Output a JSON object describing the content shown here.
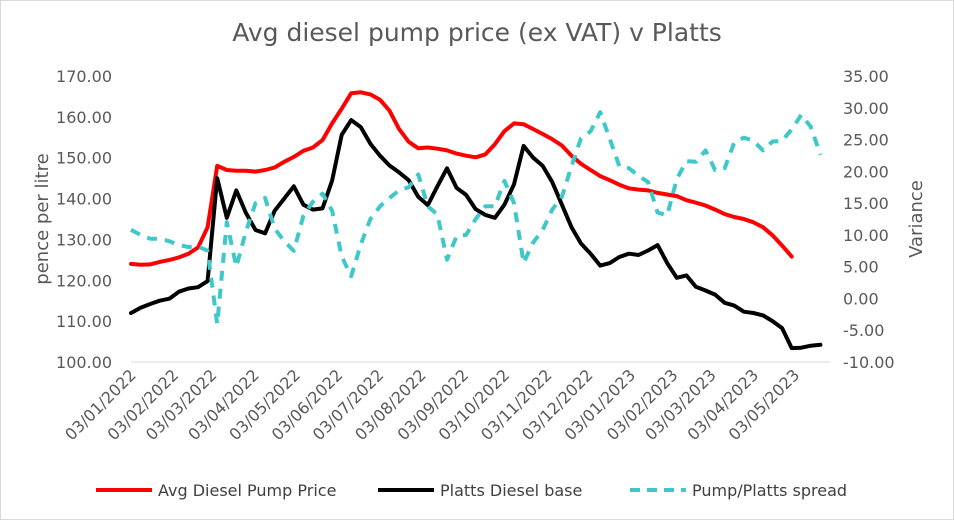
{
  "chart_data": {
    "type": "line",
    "title": "Avg diesel pump price (ex VAT) v Platts",
    "ylabel": "pence per litre",
    "y2label": "Variance",
    "ylim": [
      100,
      170
    ],
    "y2lim": [
      -10,
      35
    ],
    "yticks": [
      "100.00",
      "110.00",
      "120.00",
      "130.00",
      "140.00",
      "150.00",
      "160.00",
      "170.00"
    ],
    "y2ticks": [
      "-10.00",
      "-5.00",
      "0.00",
      "5.00",
      "10.00",
      "15.00",
      "20.00",
      "25.00",
      "30.00",
      "35.00"
    ],
    "xticks": [
      "03/01/2022",
      "03/02/2022",
      "03/03/2022",
      "03/04/2022",
      "03/05/2022",
      "03/06/2022",
      "03/07/2022",
      "03/08/2022",
      "03/09/2022",
      "03/10/2022",
      "03/11/2022",
      "03/12/2022",
      "03/01/2023",
      "03/02/2023",
      "03/03/2023",
      "03/04/2023",
      "03/05/2023"
    ],
    "x": [
      "2022-01-03",
      "2022-01-10",
      "2022-01-17",
      "2022-01-24",
      "2022-01-31",
      "2022-02-07",
      "2022-02-14",
      "2022-02-21",
      "2022-02-28",
      "2022-03-07",
      "2022-03-14",
      "2022-03-21",
      "2022-03-28",
      "2022-04-04",
      "2022-04-11",
      "2022-04-18",
      "2022-04-25",
      "2022-05-02",
      "2022-05-09",
      "2022-05-16",
      "2022-05-23",
      "2022-05-30",
      "2022-06-06",
      "2022-06-13",
      "2022-06-20",
      "2022-06-27",
      "2022-07-04",
      "2022-07-11",
      "2022-07-18",
      "2022-07-25",
      "2022-08-01",
      "2022-08-08",
      "2022-08-15",
      "2022-08-22",
      "2022-08-29",
      "2022-09-05",
      "2022-09-12",
      "2022-09-19",
      "2022-09-26",
      "2022-10-03",
      "2022-10-10",
      "2022-10-17",
      "2022-10-24",
      "2022-10-31",
      "2022-11-07",
      "2022-11-14",
      "2022-11-21",
      "2022-11-28",
      "2022-12-05",
      "2022-12-12",
      "2022-12-19",
      "2022-12-26",
      "2023-01-02",
      "2023-01-09",
      "2023-01-16",
      "2023-01-23",
      "2023-01-30",
      "2023-02-06",
      "2023-02-13",
      "2023-02-20",
      "2023-02-27",
      "2023-03-06",
      "2023-03-13",
      "2023-03-20",
      "2023-03-27",
      "2023-04-03",
      "2023-04-10",
      "2023-04-17",
      "2023-04-24",
      "2023-05-01",
      "2023-05-08",
      "2023-05-15",
      "2023-05-22"
    ],
    "series": [
      {
        "name": "Avg Diesel Pump Price",
        "axis": "left",
        "color": "#ff0000",
        "dash": "solid",
        "values": [
          124.0,
          123.8,
          123.9,
          124.5,
          125.0,
          125.6,
          126.5,
          128.0,
          133.0,
          148.0,
          147.0,
          146.8,
          146.8,
          146.6,
          147.0,
          147.6,
          149.0,
          150.2,
          151.7,
          152.5,
          154.3,
          158.4,
          162.0,
          165.8,
          166.0,
          165.5,
          164.2,
          161.5,
          157.0,
          153.9,
          152.3,
          152.5,
          152.2,
          151.8,
          151.0,
          150.5,
          150.1,
          150.8,
          153.3,
          156.5,
          158.4,
          158.2,
          157.0,
          155.8,
          154.5,
          153.0,
          150.5,
          148.5,
          147.0,
          145.5,
          144.5,
          143.4,
          142.5,
          142.2,
          142.0,
          141.4,
          141.0,
          140.6,
          139.6,
          139.0,
          138.3,
          137.3,
          136.2,
          135.5,
          135.0,
          134.2,
          133.0,
          131.0,
          128.5,
          125.8,
          null,
          null,
          null
        ]
      },
      {
        "name": "Platts Diesel base",
        "axis": "left",
        "color": "#000000",
        "dash": "solid",
        "values": [
          112.0,
          113.3,
          114.2,
          115.0,
          115.5,
          117.2,
          118.0,
          118.3,
          119.8,
          145.0,
          135.3,
          142.0,
          136.5,
          132.3,
          131.5,
          137.0,
          140.0,
          143.0,
          138.5,
          137.3,
          137.6,
          144.4,
          155.6,
          159.2,
          157.5,
          153.4,
          150.5,
          148.1,
          146.4,
          144.5,
          140.4,
          138.4,
          143.0,
          147.4,
          142.6,
          140.9,
          137.4,
          136.0,
          135.3,
          138.5,
          143.5,
          152.9,
          150.0,
          148.0,
          144.0,
          138.5,
          133.0,
          129.0,
          126.5,
          123.6,
          124.2,
          125.7,
          126.5,
          126.2,
          127.3,
          128.6,
          124.2,
          120.6,
          121.2,
          118.4,
          117.5,
          116.5,
          114.5,
          113.8,
          112.3,
          112.0,
          111.4,
          110.0,
          108.3,
          103.4,
          103.5,
          104.0,
          104.2
        ]
      },
      {
        "name": "Pump/Platts spread",
        "axis": "right",
        "color": "#3fc7c9",
        "dash": "dashed",
        "values": [
          10.8,
          10.0,
          9.4,
          9.4,
          9.0,
          8.4,
          8.1,
          8.2,
          7.5,
          -4.0,
          12.0,
          5.0,
          10.5,
          15.0,
          15.8,
          11.0,
          9.0,
          7.5,
          13.0,
          15.2,
          16.5,
          13.8,
          6.6,
          3.5,
          8.5,
          12.5,
          14.5,
          15.8,
          17.0,
          17.5,
          19.5,
          14.5,
          13.2,
          6.1,
          9.8,
          10.0,
          12.5,
          14.5,
          14.5,
          18.5,
          15.0,
          5.6,
          8.8,
          10.8,
          14.0,
          16.0,
          20.8,
          25.2,
          26.3,
          29.3,
          25.1,
          20.8,
          20.5,
          19.3,
          18.3,
          13.5,
          13.1,
          18.8,
          21.6,
          21.5,
          23.3,
          20.2,
          20.5,
          24.5,
          25.3,
          24.8,
          23.3,
          24.7,
          24.8,
          26.6,
          28.9,
          27.0,
          22.6
        ]
      }
    ],
    "legend_position": "bottom",
    "grid": false
  }
}
